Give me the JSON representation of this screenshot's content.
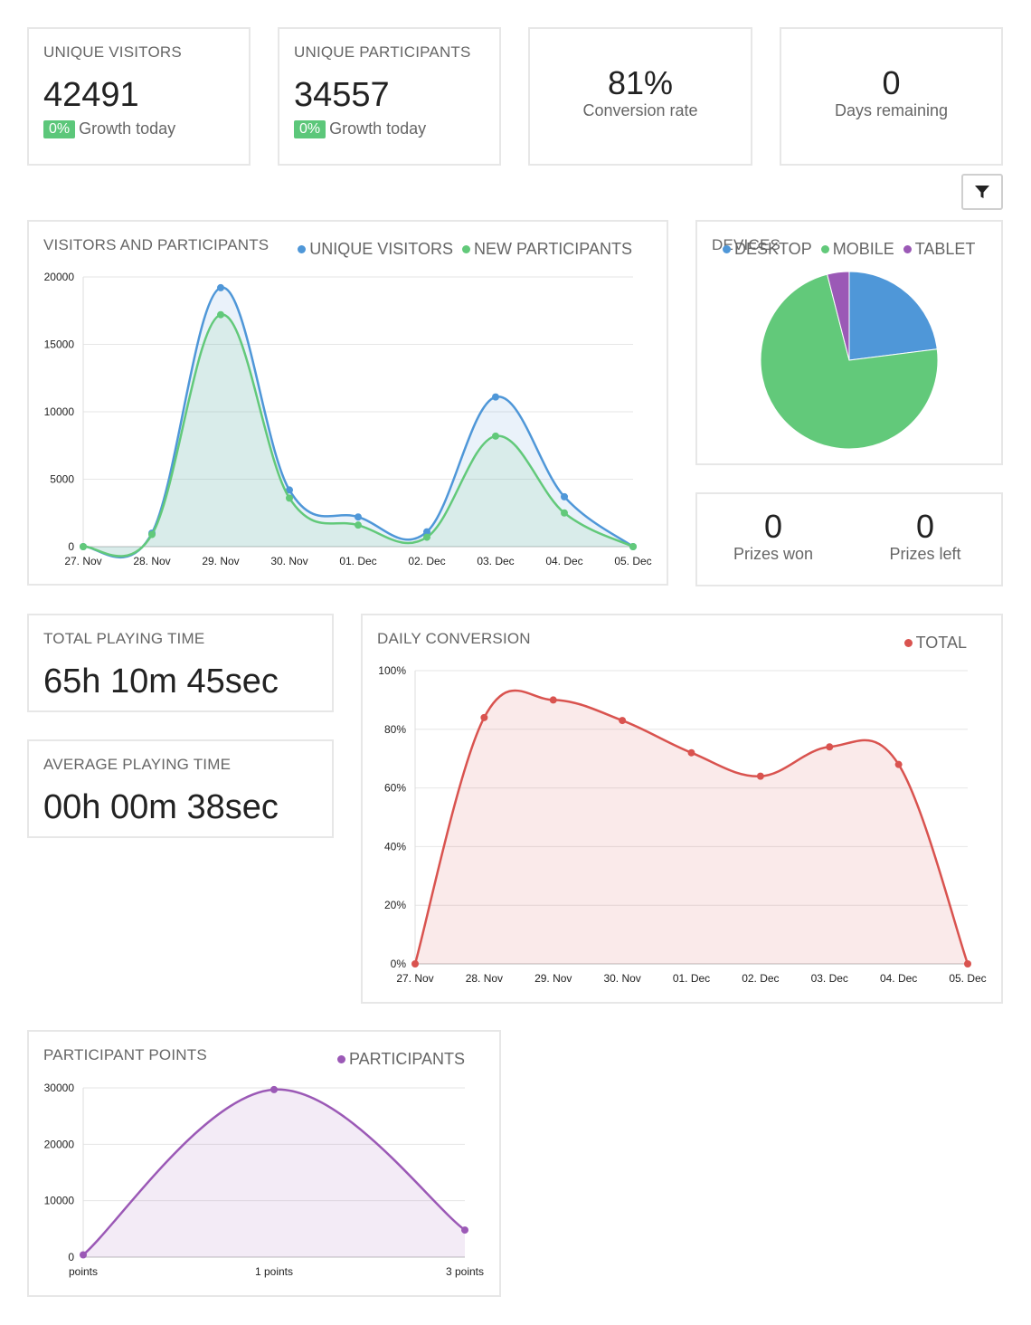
{
  "stats": {
    "unique_visitors": {
      "title": "UNIQUE VISITORS",
      "value": "42491",
      "growth_badge": "0%",
      "growth_label": "Growth today"
    },
    "unique_participants": {
      "title": "UNIQUE PARTICIPANTS",
      "value": "34557",
      "growth_badge": "0%",
      "growth_label": "Growth today"
    },
    "conversion": {
      "value": "81%",
      "label": "Conversion rate"
    },
    "days_remaining": {
      "value": "0",
      "label": "Days remaining"
    }
  },
  "filter": {
    "icon": "filter-icon"
  },
  "prizes": {
    "won": {
      "value": "0",
      "label": "Prizes won"
    },
    "left": {
      "value": "0",
      "label": "Prizes left"
    }
  },
  "playing_time": {
    "total": {
      "title": "TOTAL PLAYING TIME",
      "value": "65h 10m 45sec"
    },
    "average": {
      "title": "AVERAGE PLAYING TIME",
      "value": "00h 00m 38sec"
    }
  },
  "colors": {
    "blue": "#4f97d8",
    "green": "#62c97a",
    "purple": "#9b59b6",
    "red": "#d9534f",
    "badge": "#5cc77a"
  },
  "chart_data": [
    {
      "id": "visitors",
      "type": "area",
      "title": "VISITORS AND PARTICIPANTS",
      "categories": [
        "27. Nov",
        "28. Nov",
        "29. Nov",
        "30. Nov",
        "01. Dec",
        "02. Dec",
        "03. Dec",
        "04. Dec",
        "05. Dec"
      ],
      "ylim": [
        0,
        20000
      ],
      "yticks": [
        "0",
        "5000",
        "10000",
        "15000",
        "20000"
      ],
      "ytick_values": [
        0,
        5000,
        10000,
        15000,
        20000
      ],
      "grid": true,
      "legend": "top-right",
      "series": [
        {
          "name": "UNIQUE VISITORS",
          "color": "#4f97d8",
          "values": [
            0,
            1000,
            19200,
            4200,
            2200,
            1100,
            11100,
            3700,
            0
          ]
        },
        {
          "name": "NEW PARTICIPANTS",
          "color": "#62c97a",
          "values": [
            0,
            900,
            17200,
            3600,
            1600,
            700,
            8200,
            2500,
            0
          ]
        }
      ]
    },
    {
      "id": "devices",
      "type": "pie",
      "title": "DEVICES",
      "legend": "top",
      "slices": [
        {
          "name": "DESKTOP",
          "color": "#4f97d8",
          "value": 23
        },
        {
          "name": "MOBILE",
          "color": "#62c97a",
          "value": 73
        },
        {
          "name": "TABLET",
          "color": "#9b59b6",
          "value": 4
        }
      ]
    },
    {
      "id": "conversion",
      "type": "area",
      "title": "DAILY CONVERSION",
      "categories": [
        "27. Nov",
        "28. Nov",
        "29. Nov",
        "30. Nov",
        "01. Dec",
        "02. Dec",
        "03. Dec",
        "04. Dec",
        "05. Dec"
      ],
      "ylim": [
        0,
        100
      ],
      "yticks": [
        "0%",
        "20%",
        "40%",
        "60%",
        "80%",
        "100%"
      ],
      "ytick_values": [
        0,
        20,
        40,
        60,
        80,
        100
      ],
      "grid": true,
      "legend": "top-right",
      "series": [
        {
          "name": "TOTAL",
          "color": "#d9534f",
          "values": [
            0,
            84,
            90,
            83,
            72,
            64,
            74,
            68,
            0
          ]
        }
      ]
    },
    {
      "id": "points",
      "type": "area",
      "title": "PARTICIPANT POINTS",
      "categories": [
        "points",
        "1 points",
        "3 points"
      ],
      "ylim": [
        0,
        30000
      ],
      "yticks": [
        "0",
        "10000",
        "20000",
        "30000"
      ],
      "ytick_values": [
        0,
        10000,
        20000,
        30000
      ],
      "grid": true,
      "legend": "top-right",
      "series": [
        {
          "name": "PARTICIPANTS",
          "color": "#9b59b6",
          "values": [
            400,
            29700,
            4800
          ]
        }
      ]
    }
  ]
}
